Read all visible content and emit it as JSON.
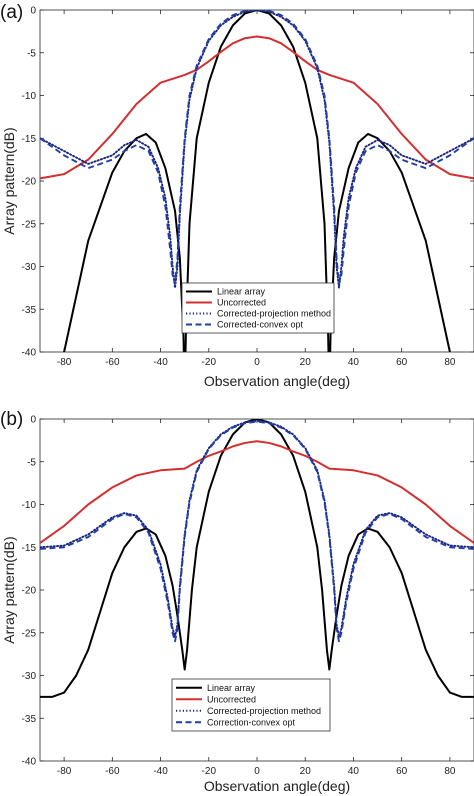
{
  "chart_data": [
    {
      "panel_label": "(a)",
      "type": "line",
      "xlabel": "Observation angle(deg)",
      "ylabel": "Array pattern(dB)",
      "xlim": [
        -90,
        90
      ],
      "ylim": [
        -40,
        0
      ],
      "x_ticks": [
        -80,
        -60,
        -40,
        -20,
        0,
        20,
        40,
        60,
        80
      ],
      "y_ticks": [
        0,
        -5,
        -10,
        -15,
        -20,
        -25,
        -30,
        -35,
        -40
      ],
      "grid": false,
      "legend_position": "lower-center",
      "series": [
        {
          "name": "Linear array",
          "color": "#000000",
          "style": "solid",
          "x": [
            -90,
            -80,
            -70,
            -60,
            -55,
            -50,
            -46,
            -42,
            -38,
            -34,
            -32,
            -30.5,
            -30,
            -29.5,
            -28,
            -25,
            -20,
            -15,
            -10,
            -5,
            0,
            5,
            10,
            15,
            20,
            25,
            28,
            29.5,
            30,
            30.5,
            32,
            34,
            38,
            42,
            46,
            50,
            55,
            60,
            70,
            80,
            90
          ],
          "y": [
            -55,
            -40,
            -27,
            -19,
            -16.5,
            -15,
            -14.5,
            -15.5,
            -18.5,
            -23.5,
            -29,
            -38,
            -45,
            -38,
            -25,
            -15,
            -8.5,
            -4.3,
            -1.8,
            -0.4,
            0,
            -0.4,
            -1.8,
            -4.3,
            -8.5,
            -15,
            -25,
            -38,
            -45,
            -38,
            -29,
            -23.5,
            -18.5,
            -15.5,
            -14.5,
            -15,
            -16.5,
            -19,
            -27,
            -40,
            -55
          ]
        },
        {
          "name": "Uncorrected",
          "color": "#d32f2f",
          "style": "solid",
          "x": [
            -90,
            -80,
            -70,
            -60,
            -50,
            -40,
            -30,
            -25,
            -20,
            -15,
            -10,
            -5,
            0,
            5,
            10,
            15,
            20,
            25,
            30,
            40,
            50,
            60,
            70,
            80,
            90
          ],
          "y": [
            -19.7,
            -19.2,
            -17.5,
            -14.5,
            -11,
            -8.5,
            -7.6,
            -7.0,
            -6.0,
            -4.9,
            -3.9,
            -3.3,
            -3.1,
            -3.3,
            -3.9,
            -4.9,
            -6.0,
            -7.0,
            -7.6,
            -8.5,
            -11,
            -14.5,
            -17.5,
            -19.2,
            -19.7
          ]
        },
        {
          "name": "Corrected-projection method",
          "color": "#1a237e",
          "style": "dotted",
          "x": [
            -90,
            -80,
            -70,
            -60,
            -55,
            -50,
            -45,
            -41,
            -38,
            -36,
            -35,
            -34,
            -33,
            -32,
            -30,
            -28,
            -25,
            -20,
            -15,
            -10,
            -5,
            0,
            5,
            10,
            15,
            20,
            25,
            28,
            30,
            32,
            33,
            34,
            35,
            36,
            38,
            41,
            45,
            50,
            55,
            60,
            70,
            80,
            90
          ],
          "y": [
            -15,
            -16.5,
            -18,
            -17,
            -15.8,
            -15.2,
            -16,
            -18.5,
            -22,
            -26.5,
            -30,
            -32.5,
            -30,
            -24,
            -15.5,
            -10.5,
            -6.8,
            -3.6,
            -1.8,
            -0.8,
            -0.2,
            0,
            -0.2,
            -0.8,
            -1.8,
            -3.6,
            -6.8,
            -10.5,
            -15.5,
            -24,
            -30,
            -32.5,
            -30,
            -26.5,
            -22,
            -18.5,
            -16,
            -15.2,
            -15.8,
            -17,
            -18,
            -16.5,
            -15
          ]
        },
        {
          "name": "Corrected-convex opt",
          "color": "#1e3fa8",
          "style": "dashed",
          "x": [
            -90,
            -80,
            -70,
            -60,
            -55,
            -50,
            -45,
            -41,
            -38,
            -36,
            -35,
            -34,
            -33,
            -32,
            -30,
            -28,
            -25,
            -20,
            -15,
            -10,
            -5,
            0,
            5,
            10,
            15,
            20,
            25,
            28,
            30,
            32,
            33,
            34,
            35,
            36,
            38,
            41,
            45,
            50,
            55,
            60,
            70,
            80,
            90
          ],
          "y": [
            -15,
            -17,
            -18.5,
            -17.5,
            -16.5,
            -15.8,
            -16.5,
            -19,
            -23,
            -28,
            -31,
            -32,
            -29,
            -23,
            -15,
            -10,
            -6.5,
            -3.4,
            -1.6,
            -0.6,
            -0.1,
            0,
            -0.1,
            -0.6,
            -1.6,
            -3.4,
            -6.5,
            -10,
            -15,
            -23,
            -29,
            -32,
            -31,
            -28,
            -23,
            -19,
            -16.5,
            -15.8,
            -16.5,
            -17.5,
            -18.5,
            -17,
            -15
          ]
        }
      ]
    },
    {
      "panel_label": "(b)",
      "type": "line",
      "xlabel": "Observation angle(deg)",
      "ylabel": "Array pattern(dB)",
      "xlim": [
        -90,
        90
      ],
      "ylim": [
        -40,
        0
      ],
      "x_ticks": [
        -80,
        -60,
        -40,
        -20,
        0,
        20,
        40,
        60,
        80
      ],
      "y_ticks": [
        0,
        -5,
        -10,
        -15,
        -20,
        -25,
        -30,
        -35,
        -40
      ],
      "grid": false,
      "legend_position": "lower-center",
      "series": [
        {
          "name": "Linear array",
          "color": "#000000",
          "style": "solid",
          "x": [
            -90,
            -85,
            -80,
            -75,
            -70,
            -65,
            -60,
            -55,
            -50,
            -46,
            -42,
            -38,
            -35,
            -33,
            -31,
            -30,
            -29,
            -27,
            -25,
            -20,
            -15,
            -10,
            -5,
            0,
            5,
            10,
            15,
            20,
            25,
            27,
            29,
            30,
            31,
            33,
            35,
            38,
            42,
            46,
            50,
            55,
            60,
            65,
            70,
            75,
            80,
            85,
            90
          ],
          "y": [
            -32.5,
            -32.5,
            -32,
            -30,
            -27,
            -22.5,
            -18,
            -15,
            -13.2,
            -12.8,
            -13.5,
            -16,
            -19.5,
            -23,
            -27,
            -29.3,
            -27,
            -20,
            -15,
            -8.5,
            -4.3,
            -1.8,
            -0.4,
            0,
            -0.4,
            -1.8,
            -4.3,
            -8.5,
            -15,
            -20,
            -27,
            -29.3,
            -27,
            -23,
            -19.5,
            -16,
            -13.5,
            -12.8,
            -13.2,
            -15,
            -18,
            -22.5,
            -27,
            -30,
            -32,
            -32.5,
            -32.5
          ]
        },
        {
          "name": "Uncorrected",
          "color": "#d32f2f",
          "style": "solid",
          "x": [
            -90,
            -80,
            -70,
            -60,
            -50,
            -40,
            -30,
            -25,
            -20,
            -15,
            -10,
            -5,
            0,
            5,
            10,
            15,
            20,
            25,
            30,
            40,
            50,
            60,
            70,
            80,
            90
          ],
          "y": [
            -14.5,
            -12.5,
            -10,
            -8,
            -6.6,
            -6.0,
            -5.8,
            -5.0,
            -4.3,
            -3.8,
            -3.2,
            -2.8,
            -2.6,
            -2.8,
            -3.2,
            -3.8,
            -4.3,
            -5.0,
            -5.8,
            -6.0,
            -6.6,
            -8,
            -10,
            -12.5,
            -14.5
          ]
        },
        {
          "name": "Corrected-projection method",
          "color": "#1a237e",
          "style": "dotted",
          "x": [
            -90,
            -80,
            -70,
            -60,
            -55,
            -50,
            -45,
            -40,
            -37,
            -35,
            -34,
            -33,
            -32,
            -30,
            -28,
            -25,
            -20,
            -15,
            -10,
            -5,
            0,
            5,
            10,
            15,
            20,
            25,
            28,
            30,
            32,
            33,
            34,
            35,
            37,
            40,
            45,
            50,
            55,
            60,
            70,
            80,
            90
          ],
          "y": [
            -15,
            -14.8,
            -13.5,
            -11.5,
            -11,
            -11.3,
            -13,
            -17,
            -21,
            -24.5,
            -25.5,
            -24,
            -19.5,
            -13.5,
            -9.5,
            -6,
            -3.4,
            -1.8,
            -0.9,
            -0.4,
            -0.2,
            -0.4,
            -0.9,
            -1.8,
            -3.4,
            -6,
            -9.5,
            -13.5,
            -19.5,
            -24,
            -25.5,
            -24.5,
            -21,
            -17,
            -13,
            -11.3,
            -11,
            -11.5,
            -13.5,
            -14.8,
            -15
          ]
        },
        {
          "name": "Correction-convex opt",
          "color": "#1e3fa8",
          "style": "dashed",
          "x": [
            -90,
            -80,
            -70,
            -60,
            -55,
            -50,
            -45,
            -40,
            -37,
            -35,
            -34,
            -33,
            -32,
            -30,
            -28,
            -25,
            -20,
            -15,
            -10,
            -5,
            0,
            5,
            10,
            15,
            20,
            25,
            28,
            30,
            32,
            33,
            34,
            35,
            37,
            40,
            45,
            50,
            55,
            60,
            70,
            80,
            90
          ],
          "y": [
            -15.2,
            -15,
            -13.8,
            -11.7,
            -11.1,
            -11.5,
            -13.3,
            -17.5,
            -21.5,
            -25,
            -26,
            -24.5,
            -20,
            -13.8,
            -9.8,
            -6.2,
            -3.5,
            -1.9,
            -1,
            -0.5,
            -0.3,
            -0.5,
            -1,
            -1.9,
            -3.5,
            -6.2,
            -9.8,
            -13.8,
            -20,
            -24.5,
            -26,
            -25,
            -21.5,
            -17.5,
            -13.3,
            -11.5,
            -11.1,
            -11.7,
            -13.8,
            -15,
            -15.2
          ]
        }
      ]
    }
  ]
}
